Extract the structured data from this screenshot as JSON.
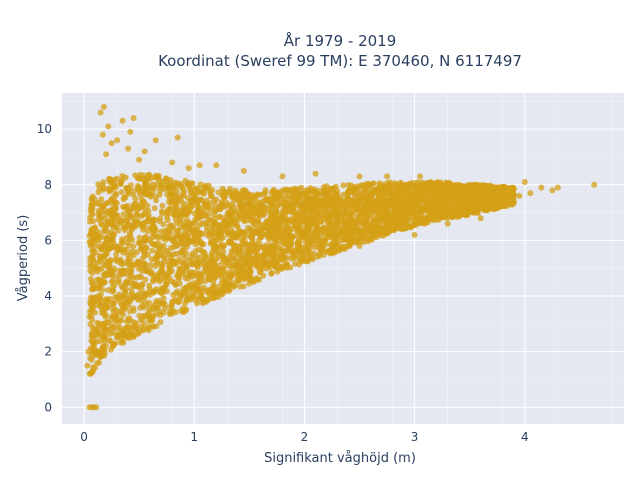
{
  "chart_data": {
    "type": "scatter",
    "title_line1": "År 1979 - 2019",
    "title_line2": "Koordinat (Sweref 99 TM): E 370460, N 6117497",
    "xlabel": "Signifikant våghöjd (m)",
    "ylabel": "Vågperiod (s)",
    "xlim": [
      -0.2,
      4.9
    ],
    "ylim": [
      -0.6,
      11.3
    ],
    "x_ticks": [
      0,
      1,
      2,
      3,
      4
    ],
    "y_ticks": [
      0,
      2,
      4,
      6,
      8,
      10
    ],
    "grid": true,
    "marker_color": "#D4A017",
    "plot_bgcolor": "#E5E8F0",
    "series": [
      {
        "band": [
          {
            "x": 0.05,
            "ymin": 1.1,
            "ymax": 7.6
          },
          {
            "x": 0.1,
            "ymin": 1.4,
            "ymax": 8.0
          },
          {
            "x": 0.2,
            "ymin": 1.9,
            "ymax": 8.2
          },
          {
            "x": 0.3,
            "ymin": 2.2,
            "ymax": 8.3
          },
          {
            "x": 0.5,
            "ymin": 2.6,
            "ymax": 8.4
          },
          {
            "x": 0.75,
            "ymin": 3.1,
            "ymax": 8.3
          },
          {
            "x": 1.0,
            "ymin": 3.6,
            "ymax": 8.1
          },
          {
            "x": 1.3,
            "ymin": 4.1,
            "ymax": 7.9
          },
          {
            "x": 1.6,
            "ymin": 4.6,
            "ymax": 7.8
          },
          {
            "x": 2.0,
            "ymin": 5.2,
            "ymax": 7.9
          },
          {
            "x": 2.4,
            "ymin": 5.7,
            "ymax": 8.0
          },
          {
            "x": 2.8,
            "ymin": 6.3,
            "ymax": 8.1
          },
          {
            "x": 3.2,
            "ymin": 6.7,
            "ymax": 8.1
          },
          {
            "x": 3.6,
            "ymin": 7.0,
            "ymax": 8.0
          },
          {
            "x": 3.9,
            "ymin": 7.3,
            "ymax": 7.9
          }
        ],
        "points": [
          {
            "x": 0.18,
            "y": 10.8
          },
          {
            "x": 0.15,
            "y": 10.6
          },
          {
            "x": 0.35,
            "y": 10.3
          },
          {
            "x": 0.45,
            "y": 10.4
          },
          {
            "x": 0.22,
            "y": 10.1
          },
          {
            "x": 0.42,
            "y": 9.9
          },
          {
            "x": 0.17,
            "y": 9.8
          },
          {
            "x": 0.3,
            "y": 9.6
          },
          {
            "x": 0.85,
            "y": 9.7
          },
          {
            "x": 0.25,
            "y": 9.5
          },
          {
            "x": 0.65,
            "y": 9.6
          },
          {
            "x": 0.4,
            "y": 9.3
          },
          {
            "x": 0.55,
            "y": 9.2
          },
          {
            "x": 0.2,
            "y": 9.1
          },
          {
            "x": 0.5,
            "y": 8.9
          },
          {
            "x": 0.8,
            "y": 8.8
          },
          {
            "x": 1.05,
            "y": 8.7
          },
          {
            "x": 1.2,
            "y": 8.7
          },
          {
            "x": 0.95,
            "y": 8.6
          },
          {
            "x": 1.45,
            "y": 8.5
          },
          {
            "x": 1.8,
            "y": 8.3
          },
          {
            "x": 2.1,
            "y": 8.4
          },
          {
            "x": 2.5,
            "y": 8.3
          },
          {
            "x": 2.75,
            "y": 8.3
          },
          {
            "x": 3.05,
            "y": 8.3
          },
          {
            "x": 3.15,
            "y": 8.1
          },
          {
            "x": 3.5,
            "y": 7.8
          },
          {
            "x": 3.7,
            "y": 7.5
          },
          {
            "x": 3.85,
            "y": 7.7
          },
          {
            "x": 3.95,
            "y": 7.6
          },
          {
            "x": 4.05,
            "y": 7.7
          },
          {
            "x": 4.15,
            "y": 7.9
          },
          {
            "x": 4.25,
            "y": 7.8
          },
          {
            "x": 4.3,
            "y": 7.9
          },
          {
            "x": 4.0,
            "y": 8.1
          },
          {
            "x": 4.63,
            "y": 8.0
          },
          {
            "x": 3.6,
            "y": 6.8
          },
          {
            "x": 3.3,
            "y": 6.6
          },
          {
            "x": 3.0,
            "y": 6.2
          },
          {
            "x": 2.5,
            "y": 5.8
          },
          {
            "x": 2.2,
            "y": 5.6
          },
          {
            "x": 1.5,
            "y": 4.8
          },
          {
            "x": 1.3,
            "y": 4.3
          },
          {
            "x": 0.05,
            "y": 0.0
          },
          {
            "x": 0.07,
            "y": 0.0
          },
          {
            "x": 0.09,
            "y": 0.0
          },
          {
            "x": 0.11,
            "y": 0.0
          },
          {
            "x": 0.03,
            "y": 1.5
          },
          {
            "x": 0.06,
            "y": 1.2
          },
          {
            "x": 0.04,
            "y": 2.0
          }
        ]
      }
    ]
  }
}
